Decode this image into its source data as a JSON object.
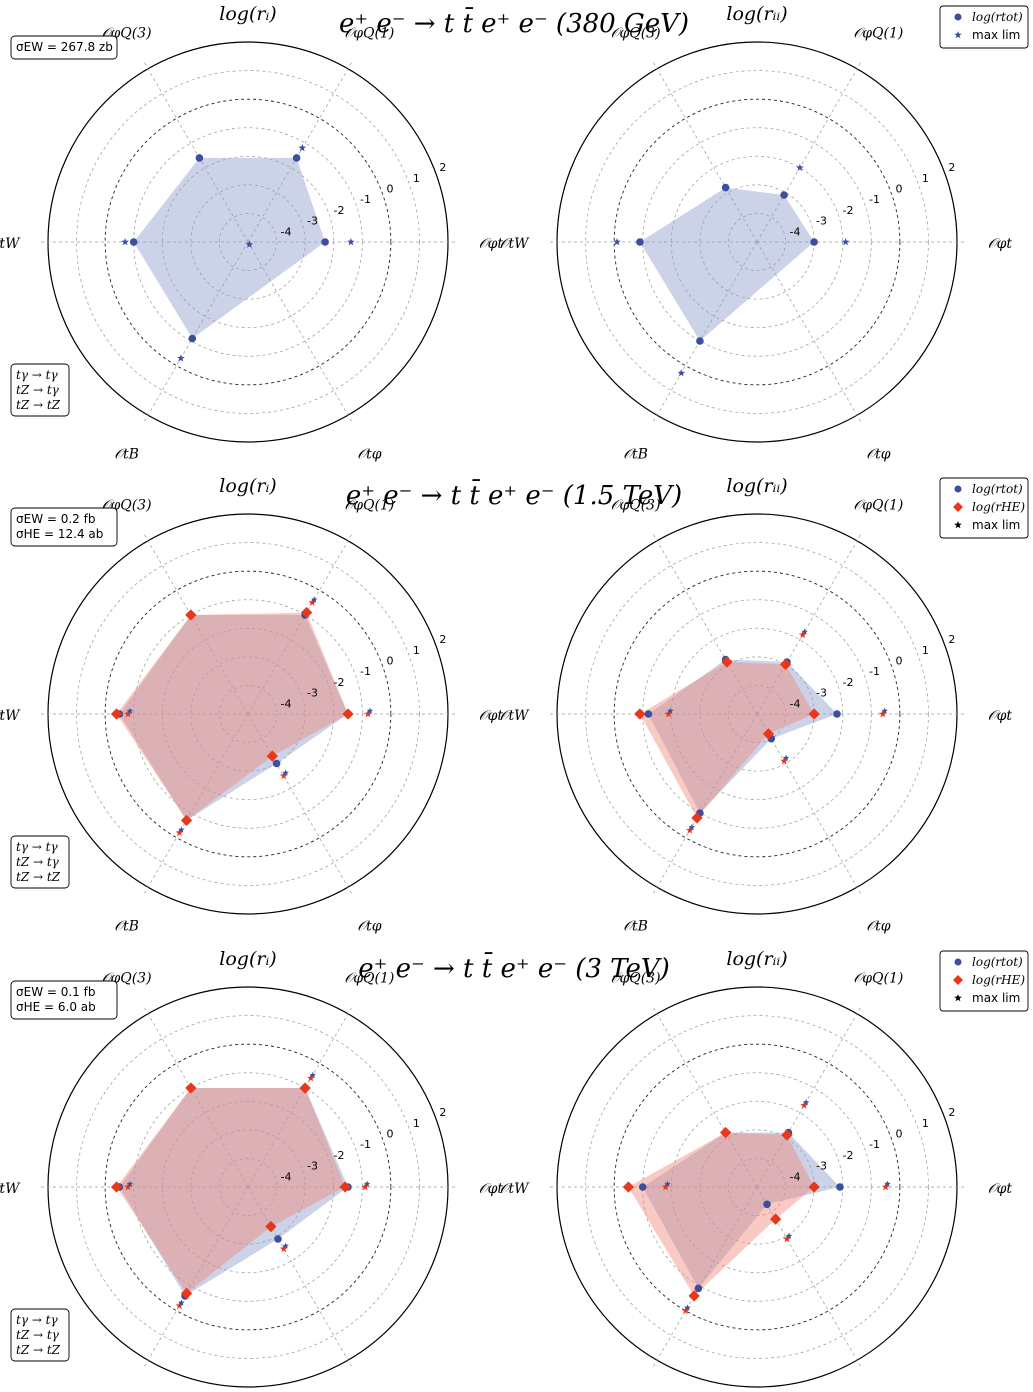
{
  "figure_titles": [
    "e⁺ e⁻ → t t̄ e⁺ e⁻  (380 GeV)",
    "e⁺ e⁻ → t t̄ e⁺ e⁻  (1.5 TeV)",
    "e⁺ e⁻ → t t̄ e⁺ e⁻  (3 TeV)"
  ],
  "panel_titles": {
    "left": "log(rᵢ)",
    "right": "log(rᵢᵢ)"
  },
  "axis_labels": [
    "𝒪φt",
    "𝒪φQ(1)",
    "𝒪φQ(3)",
    "𝒪tW",
    "𝒪tB",
    "𝒪tφ"
  ],
  "radial_ticks": [
    "-4",
    "-3",
    "-2",
    "-1",
    "0",
    "1",
    "2"
  ],
  "process_box": [
    "tγ → tγ",
    "tZ → tγ",
    "tZ → tZ"
  ],
  "cross_sections": [
    [
      "σEW = 267.8 zb"
    ],
    [
      "σEW = 0.2 fb",
      "σHE = 12.4 ab"
    ],
    [
      "σEW = 0.1 fb",
      "σHE = 6.0 ab"
    ]
  ],
  "legends": [
    [
      "log(rtot)",
      "max lim"
    ],
    [
      "log(rtot)",
      "log(rHE)",
      "max lim"
    ],
    [
      "log(rtot)",
      "log(rHE)",
      "max lim"
    ]
  ],
  "colors": {
    "tot": "#3b4f9e",
    "he": "#e8381c",
    "tot_fill": "#8f9bcc",
    "he_fill": "#f08a7a",
    "lim": "#000000"
  },
  "chart_data": [
    {
      "type": "radar",
      "title": "e⁺ e⁻ → t t̄ e⁺ e⁻  (380 GeV)",
      "categories": [
        "𝒪φt",
        "𝒪φQ(1)",
        "𝒪φQ(3)",
        "𝒪tW",
        "𝒪tB",
        "𝒪tφ"
      ],
      "rlim": [
        -5,
        2
      ],
      "left": {
        "series": [
          {
            "name": "log(rtot)",
            "values": [
              -2.3,
              -1.6,
              -1.6,
              -1.0,
              -1.1,
              null
            ]
          },
          {
            "name": "max lim",
            "values": [
              -1.4,
              -1.2,
              null,
              -0.7,
              -0.3,
              -4.9
            ]
          }
        ]
      },
      "right": {
        "series": [
          {
            "name": "log(rtot)",
            "values": [
              -3.0,
              -3.1,
              -2.8,
              -0.9,
              -1.0,
              null
            ]
          },
          {
            "name": "max lim",
            "values": [
              -1.9,
              -2.0,
              null,
              -0.1,
              0.3,
              null
            ]
          }
        ]
      }
    },
    {
      "type": "radar",
      "title": "e⁺ e⁻ → t t̄ e⁺ e⁻  (1.5 TeV)",
      "categories": [
        "𝒪φt",
        "𝒪φQ(1)",
        "𝒪φQ(3)",
        "𝒪tW",
        "𝒪tB",
        "𝒪tφ"
      ],
      "rlim": [
        -5,
        2
      ],
      "left": {
        "series": [
          {
            "name": "log(rtot)",
            "values": [
              -1.5,
              -1.0,
              -1.0,
              -0.5,
              -0.7,
              -3.0
            ]
          },
          {
            "name": "log(rHE)",
            "values": [
              -1.5,
              -0.9,
              -1.0,
              -0.4,
              -0.7,
              -3.3
            ]
          },
          {
            "name": "max lim",
            "values": [
              -0.8,
              -0.5,
              null,
              -0.8,
              -0.2,
              -2.5
            ]
          }
        ]
      },
      "right": {
        "series": [
          {
            "name": "log(rtot)",
            "values": [
              -2.2,
              -2.9,
              -2.8,
              -1.2,
              -1.0,
              -4.0
            ]
          },
          {
            "name": "log(rHE)",
            "values": [
              -3.0,
              -3.0,
              -2.9,
              -0.9,
              -0.8,
              -4.2
            ]
          },
          {
            "name": "max lim",
            "values": [
              -0.6,
              -1.8,
              null,
              -1.9,
              -0.3,
              -3.1
            ]
          }
        ]
      }
    },
    {
      "type": "radar",
      "title": "e⁺ e⁻ → t t̄ e⁺ e⁻  (3 TeV)",
      "categories": [
        "𝒪φt",
        "𝒪φQ(1)",
        "𝒪φQ(3)",
        "𝒪tW",
        "𝒪tB",
        "𝒪tφ"
      ],
      "rlim": [
        -5,
        2
      ],
      "left": {
        "series": [
          {
            "name": "log(rtot)",
            "values": [
              -1.5,
              -1.0,
              -1.0,
              -0.5,
              -0.6,
              -2.9
            ]
          },
          {
            "name": "log(rHE)",
            "values": [
              -1.6,
              -1.0,
              -1.0,
              -0.4,
              -0.7,
              -3.4
            ]
          },
          {
            "name": "max lim",
            "values": [
              -0.9,
              -0.6,
              null,
              -0.8,
              -0.2,
              -2.5
            ]
          }
        ]
      },
      "right": {
        "series": [
          {
            "name": "log(rtot)",
            "values": [
              -2.1,
              -2.8,
              -2.8,
              -1.0,
              -0.9,
              -4.3
            ]
          },
          {
            "name": "log(rHE)",
            "values": [
              -3.0,
              -2.9,
              -2.8,
              -0.5,
              -0.6,
              -3.7
            ]
          },
          {
            "name": "max lim",
            "values": [
              -0.5,
              -1.7,
              null,
              -1.8,
              0.0,
              -2.9
            ]
          }
        ]
      }
    }
  ]
}
